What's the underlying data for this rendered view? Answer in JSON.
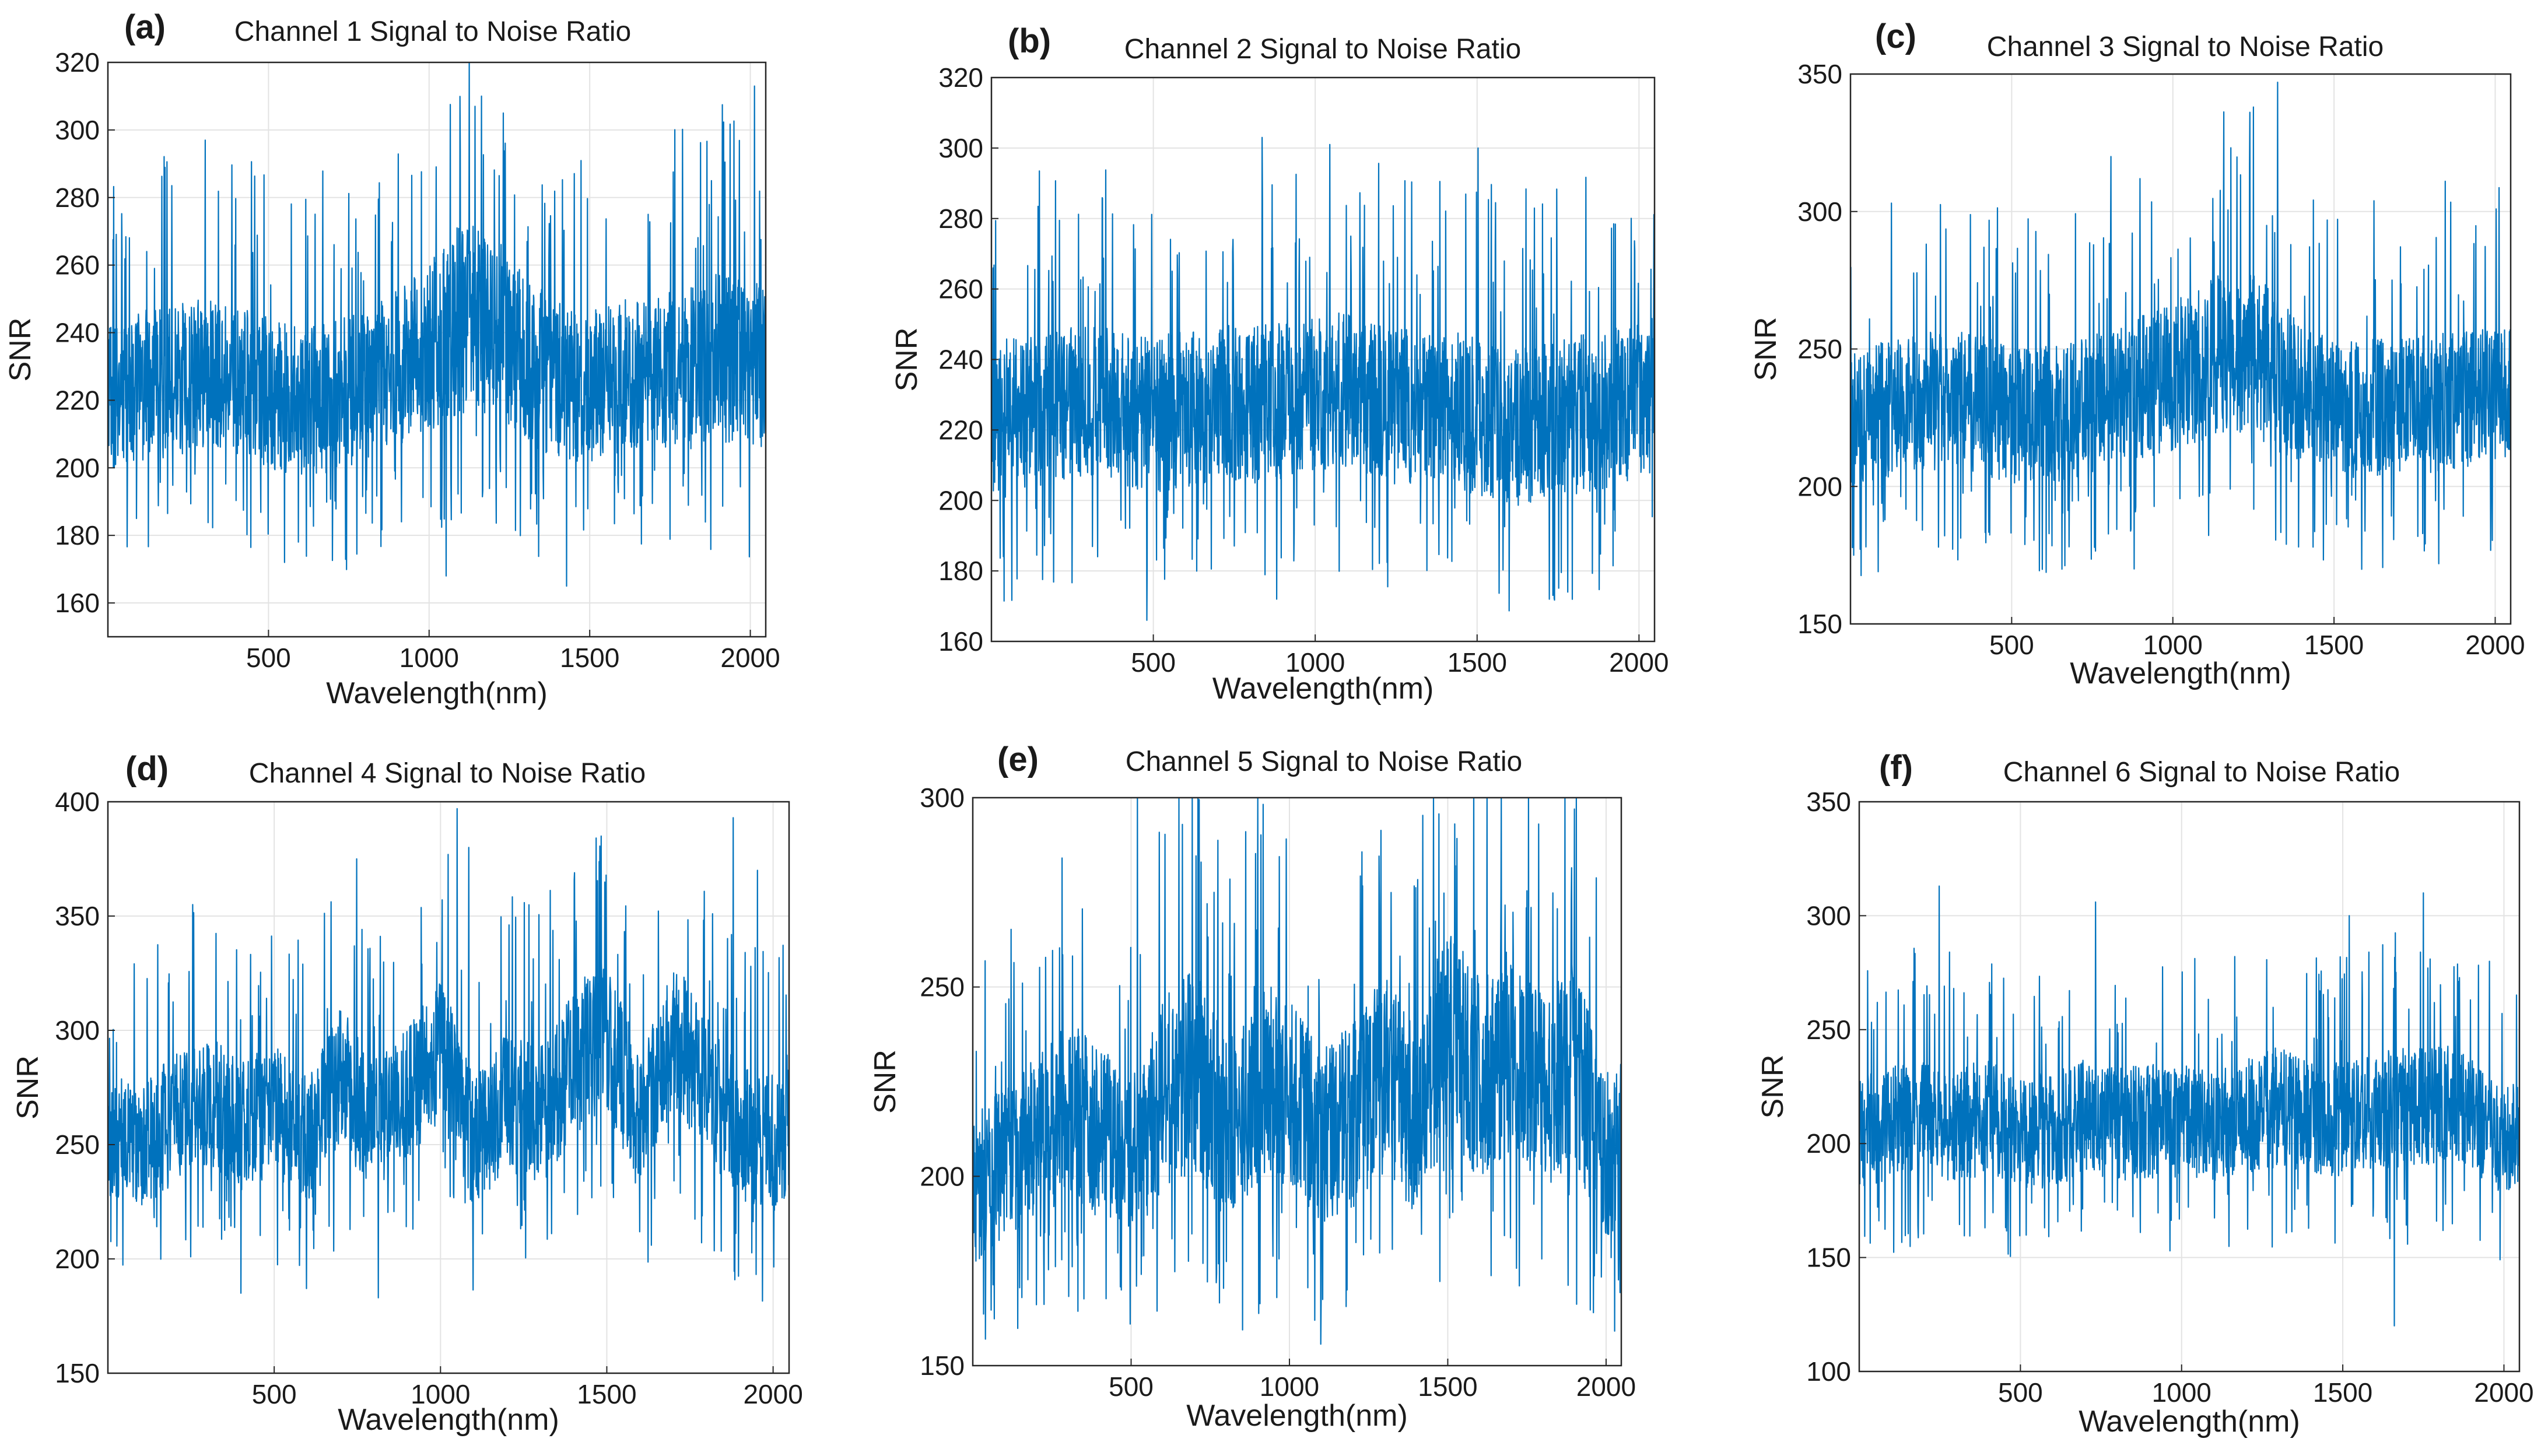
{
  "figure": {
    "shared": {
      "xlabel": "Wavelength(nm)",
      "ylabel": "SNR",
      "xlim": [
        0,
        2048
      ],
      "xticks": [
        500,
        1000,
        1500,
        2000
      ],
      "line_color": "#0072BD",
      "grid": true
    }
  },
  "chart_data": [
    {
      "type": "line",
      "panel_label": "(a)",
      "title": "Channel 1 Signal to Noise Ratio",
      "xlabel": "Wavelength(nm)",
      "ylabel": "SNR",
      "xlim": [
        0,
        2048
      ],
      "ylim": [
        150,
        320
      ],
      "xticks": [
        500,
        1000,
        1500,
        2000
      ],
      "yticks": [
        160,
        180,
        200,
        220,
        240,
        260,
        280,
        300,
        320
      ],
      "series": [
        {
          "name": "SNR",
          "x": [
            0,
            100,
            200,
            300,
            400,
            500,
            600,
            700,
            800,
            900,
            1000,
            1100,
            1200,
            1300,
            1400,
            1500,
            1600,
            1700,
            1800,
            1900,
            2000,
            2048
          ],
          "values": [
            222,
            224,
            226,
            228,
            226,
            222,
            220,
            221,
            224,
            230,
            236,
            245,
            243,
            232,
            226,
            224,
            227,
            230,
            229,
            233,
            232,
            230
          ],
          "spread": [
            25,
            25,
            25,
            25,
            25,
            25,
            25,
            25,
            25,
            26,
            28,
            32,
            30,
            27,
            26,
            25,
            25,
            26,
            27,
            28,
            28,
            27
          ],
          "noise_seed": 11,
          "peaks": [
            {
              "x": 303,
              "y": 297
            },
            {
              "x": 1053,
              "y": 168
            },
            {
              "x": 1125,
              "y": 320
            },
            {
              "x": 1143,
              "y": 307
            },
            {
              "x": 1163,
              "y": 310
            },
            {
              "x": 1231,
              "y": 305
            },
            {
              "x": 1428,
              "y": 165
            },
            {
              "x": 2013,
              "y": 313
            },
            {
              "x": 550,
              "y": 172
            }
          ]
        }
      ]
    },
    {
      "type": "line",
      "panel_label": "(b)",
      "title": "Channel 2 Signal to Noise Ratio",
      "xlabel": "Wavelength(nm)",
      "ylabel": "SNR",
      "xlim": [
        0,
        2048
      ],
      "ylim": [
        160,
        320
      ],
      "xticks": [
        500,
        1000,
        1500,
        2000
      ],
      "yticks": [
        160,
        180,
        200,
        220,
        240,
        260,
        280,
        300,
        320
      ],
      "series": [
        {
          "name": "SNR",
          "x": [
            0,
            100,
            200,
            300,
            400,
            500,
            600,
            700,
            800,
            900,
            1000,
            1100,
            1200,
            1300,
            1400,
            1500,
            1600,
            1700,
            1800,
            1900,
            2000,
            2048
          ],
          "values": [
            222,
            225,
            228,
            228,
            226,
            224,
            226,
            228,
            227,
            228,
            230,
            232,
            228,
            226,
            226,
            224,
            220,
            222,
            224,
            226,
            228,
            230
          ],
          "spread": [
            25,
            25,
            25,
            25,
            25,
            25,
            25,
            25,
            25,
            25,
            25,
            25,
            25,
            25,
            25,
            25,
            25,
            25,
            25,
            25,
            25,
            25
          ],
          "noise_seed": 23,
          "peaks": [
            {
              "x": 480,
              "y": 166
            },
            {
              "x": 836,
              "y": 303
            },
            {
              "x": 881,
              "y": 172
            },
            {
              "x": 1045,
              "y": 301
            },
            {
              "x": 1503,
              "y": 300
            },
            {
              "x": 1723,
              "y": 172
            }
          ]
        }
      ]
    },
    {
      "type": "line",
      "panel_label": "(c)",
      "title": "Channel 3 Signal to Noise Ratio",
      "xlabel": "Wavelength(nm)",
      "ylabel": "SNR",
      "xlim": [
        0,
        2048
      ],
      "ylim": [
        150,
        350
      ],
      "xticks": [
        500,
        1000,
        1500,
        2000
      ],
      "yticks": [
        150,
        200,
        250,
        300,
        350
      ],
      "series": [
        {
          "name": "SNR",
          "x": [
            0,
            100,
            200,
            300,
            400,
            500,
            600,
            700,
            800,
            900,
            1000,
            1100,
            1200,
            1300,
            1400,
            1500,
            1600,
            1700,
            1800,
            1900,
            2000,
            2048
          ],
          "values": [
            225,
            228,
            230,
            232,
            230,
            226,
            226,
            228,
            232,
            236,
            240,
            246,
            250,
            244,
            232,
            228,
            228,
            230,
            230,
            232,
            234,
            232
          ],
          "spread": [
            28,
            28,
            28,
            28,
            28,
            28,
            28,
            28,
            28,
            29,
            30,
            32,
            34,
            32,
            29,
            28,
            28,
            28,
            28,
            28,
            28,
            28
          ],
          "noise_seed": 37,
          "peaks": [
            {
              "x": 10,
              "y": 175
            },
            {
              "x": 808,
              "y": 320
            },
            {
              "x": 1250,
              "y": 338
            },
            {
              "x": 1325,
              "y": 347
            },
            {
              "x": 1390,
              "y": 178
            },
            {
              "x": 880,
              "y": 170
            },
            {
              "x": 1845,
              "y": 311
            }
          ]
        }
      ]
    },
    {
      "type": "line",
      "panel_label": "(d)",
      "title": "Channel 4 Signal to Noise Ratio",
      "xlabel": "Wavelength(nm)",
      "ylabel": "SNR",
      "xlim": [
        0,
        2048
      ],
      "ylim": [
        150,
        400
      ],
      "xticks": [
        500,
        1000,
        1500,
        2000
      ],
      "yticks": [
        150,
        200,
        250,
        300,
        350,
        400
      ],
      "series": [
        {
          "name": "SNR",
          "x": [
            0,
            100,
            200,
            300,
            400,
            500,
            600,
            700,
            800,
            900,
            1000,
            1100,
            1200,
            1300,
            1400,
            1500,
            1600,
            1700,
            1800,
            1900,
            2000,
            2048
          ],
          "values": [
            255,
            248,
            262,
            270,
            258,
            266,
            250,
            280,
            258,
            272,
            292,
            250,
            270,
            262,
            286,
            300,
            258,
            300,
            275,
            255,
            250,
            260
          ],
          "spread": [
            30,
            30,
            32,
            32,
            32,
            32,
            32,
            34,
            32,
            32,
            36,
            32,
            34,
            34,
            36,
            38,
            34,
            36,
            34,
            32,
            34,
            34
          ],
          "noise_seed": 41,
          "peaks": [
            {
              "x": 255,
              "y": 355
            },
            {
              "x": 748,
              "y": 375
            },
            {
              "x": 813,
              "y": 183
            },
            {
              "x": 1050,
              "y": 397
            },
            {
              "x": 1085,
              "y": 380
            },
            {
              "x": 1483,
              "y": 385
            },
            {
              "x": 1880,
              "y": 393
            },
            {
              "x": 1953,
              "y": 370
            },
            {
              "x": 400,
              "y": 185
            }
          ]
        }
      ]
    },
    {
      "type": "line",
      "panel_label": "(e)",
      "title": "Channel 5 Signal to Noise Ratio",
      "xlabel": "Wavelength(nm)",
      "ylabel": "SNR",
      "xlim": [
        0,
        2048
      ],
      "ylim": [
        150,
        300
      ],
      "xticks": [
        500,
        1000,
        1500,
        2000
      ],
      "yticks": [
        150,
        200,
        250,
        300
      ],
      "series": [
        {
          "name": "SNR",
          "x": [
            0,
            100,
            200,
            300,
            400,
            500,
            600,
            700,
            800,
            900,
            1000,
            1100,
            1200,
            1300,
            1400,
            1500,
            1600,
            1700,
            1800,
            1900,
            2000,
            2048
          ],
          "values": [
            196,
            204,
            210,
            218,
            212,
            204,
            222,
            228,
            212,
            225,
            222,
            210,
            216,
            226,
            214,
            240,
            226,
            234,
            222,
            230,
            206,
            210
          ],
          "spread": [
            22,
            22,
            24,
            26,
            26,
            24,
            28,
            30,
            28,
            30,
            28,
            26,
            28,
            30,
            28,
            32,
            30,
            30,
            28,
            30,
            26,
            26
          ],
          "noise_seed": 53,
          "peaks": [
            {
              "x": 520,
              "y": 300
            },
            {
              "x": 740,
              "y": 300
            },
            {
              "x": 900,
              "y": 300
            },
            {
              "x": 1455,
              "y": 300
            },
            {
              "x": 40,
              "y": 157
            },
            {
              "x": 1080,
              "y": 162
            },
            {
              "x": 1900,
              "y": 297
            },
            {
              "x": 1960,
              "y": 164
            },
            {
              "x": 740,
              "y": 272
            }
          ]
        }
      ]
    },
    {
      "type": "line",
      "panel_label": "(f)",
      "title": "Channel 6 Signal to Noise Ratio",
      "xlabel": "Wavelength(nm)",
      "ylabel": "SNR",
      "xlim": [
        0,
        2048
      ],
      "ylim": [
        100,
        350
      ],
      "xticks": [
        500,
        1000,
        1500,
        2000
      ],
      "yticks": [
        100,
        150,
        200,
        250,
        300,
        350
      ],
      "series": [
        {
          "name": "SNR",
          "x": [
            0,
            100,
            200,
            300,
            400,
            500,
            600,
            700,
            800,
            900,
            1000,
            1100,
            1200,
            1300,
            1400,
            1500,
            1600,
            1700,
            1800,
            1900,
            2000,
            2048
          ],
          "values": [
            205,
            210,
            212,
            208,
            212,
            205,
            206,
            212,
            208,
            210,
            210,
            208,
            212,
            216,
            212,
            210,
            214,
            216,
            218,
            212,
            200,
            208
          ],
          "spread": [
            28,
            28,
            28,
            28,
            28,
            28,
            28,
            28,
            28,
            28,
            28,
            28,
            28,
            30,
            28,
            28,
            28,
            30,
            30,
            28,
            26,
            28
          ],
          "noise_seed": 67,
          "peaks": [
            {
              "x": 248,
              "y": 313
            },
            {
              "x": 733,
              "y": 306
            },
            {
              "x": 1660,
              "y": 120
            },
            {
              "x": 1520,
              "y": 300
            },
            {
              "x": 1750,
              "y": 310
            },
            {
              "x": 1955,
              "y": 280
            },
            {
              "x": 45,
              "y": 250
            }
          ]
        }
      ]
    }
  ]
}
